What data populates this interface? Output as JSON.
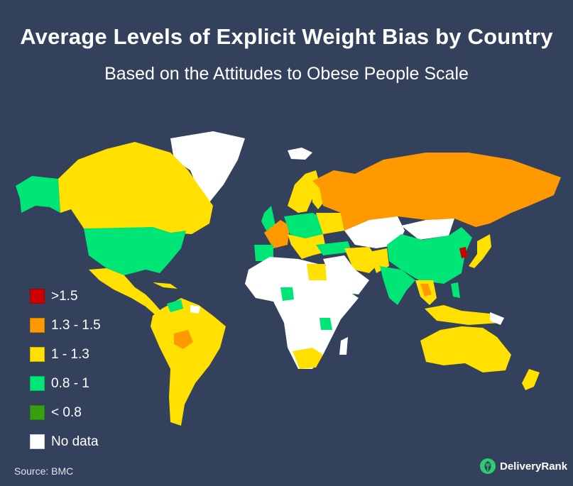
{
  "title": "Average Levels of Explicit Weight Bias by Country",
  "subtitle": "Based on the Attitudes to Obese People Scale",
  "colors": {
    "background": "#33415c",
    "gt_1_5": "#cc0000",
    "r_1_3_1_5": "#ff9900",
    "r_1_1_3": "#ffe000",
    "r_0_8_1": "#00e676",
    "lt_0_8": "#38a010",
    "no_data": "#ffffff"
  },
  "legend": [
    {
      "label": ">1.5",
      "color": "#cc0000"
    },
    {
      "label": "1.3 - 1.5",
      "color": "#ff9900"
    },
    {
      "label": "1 - 1.3",
      "color": "#ffe000"
    },
    {
      "label": "0.8 - 1",
      "color": "#00e676"
    },
    {
      "label": "< 0.8",
      "color": "#38a010"
    },
    {
      "label": "No data",
      "color": "#ffffff"
    }
  ],
  "source": "Source: BMC",
  "logo": {
    "text": "DeliveryRank",
    "icon": "fork-leaf-icon"
  }
}
